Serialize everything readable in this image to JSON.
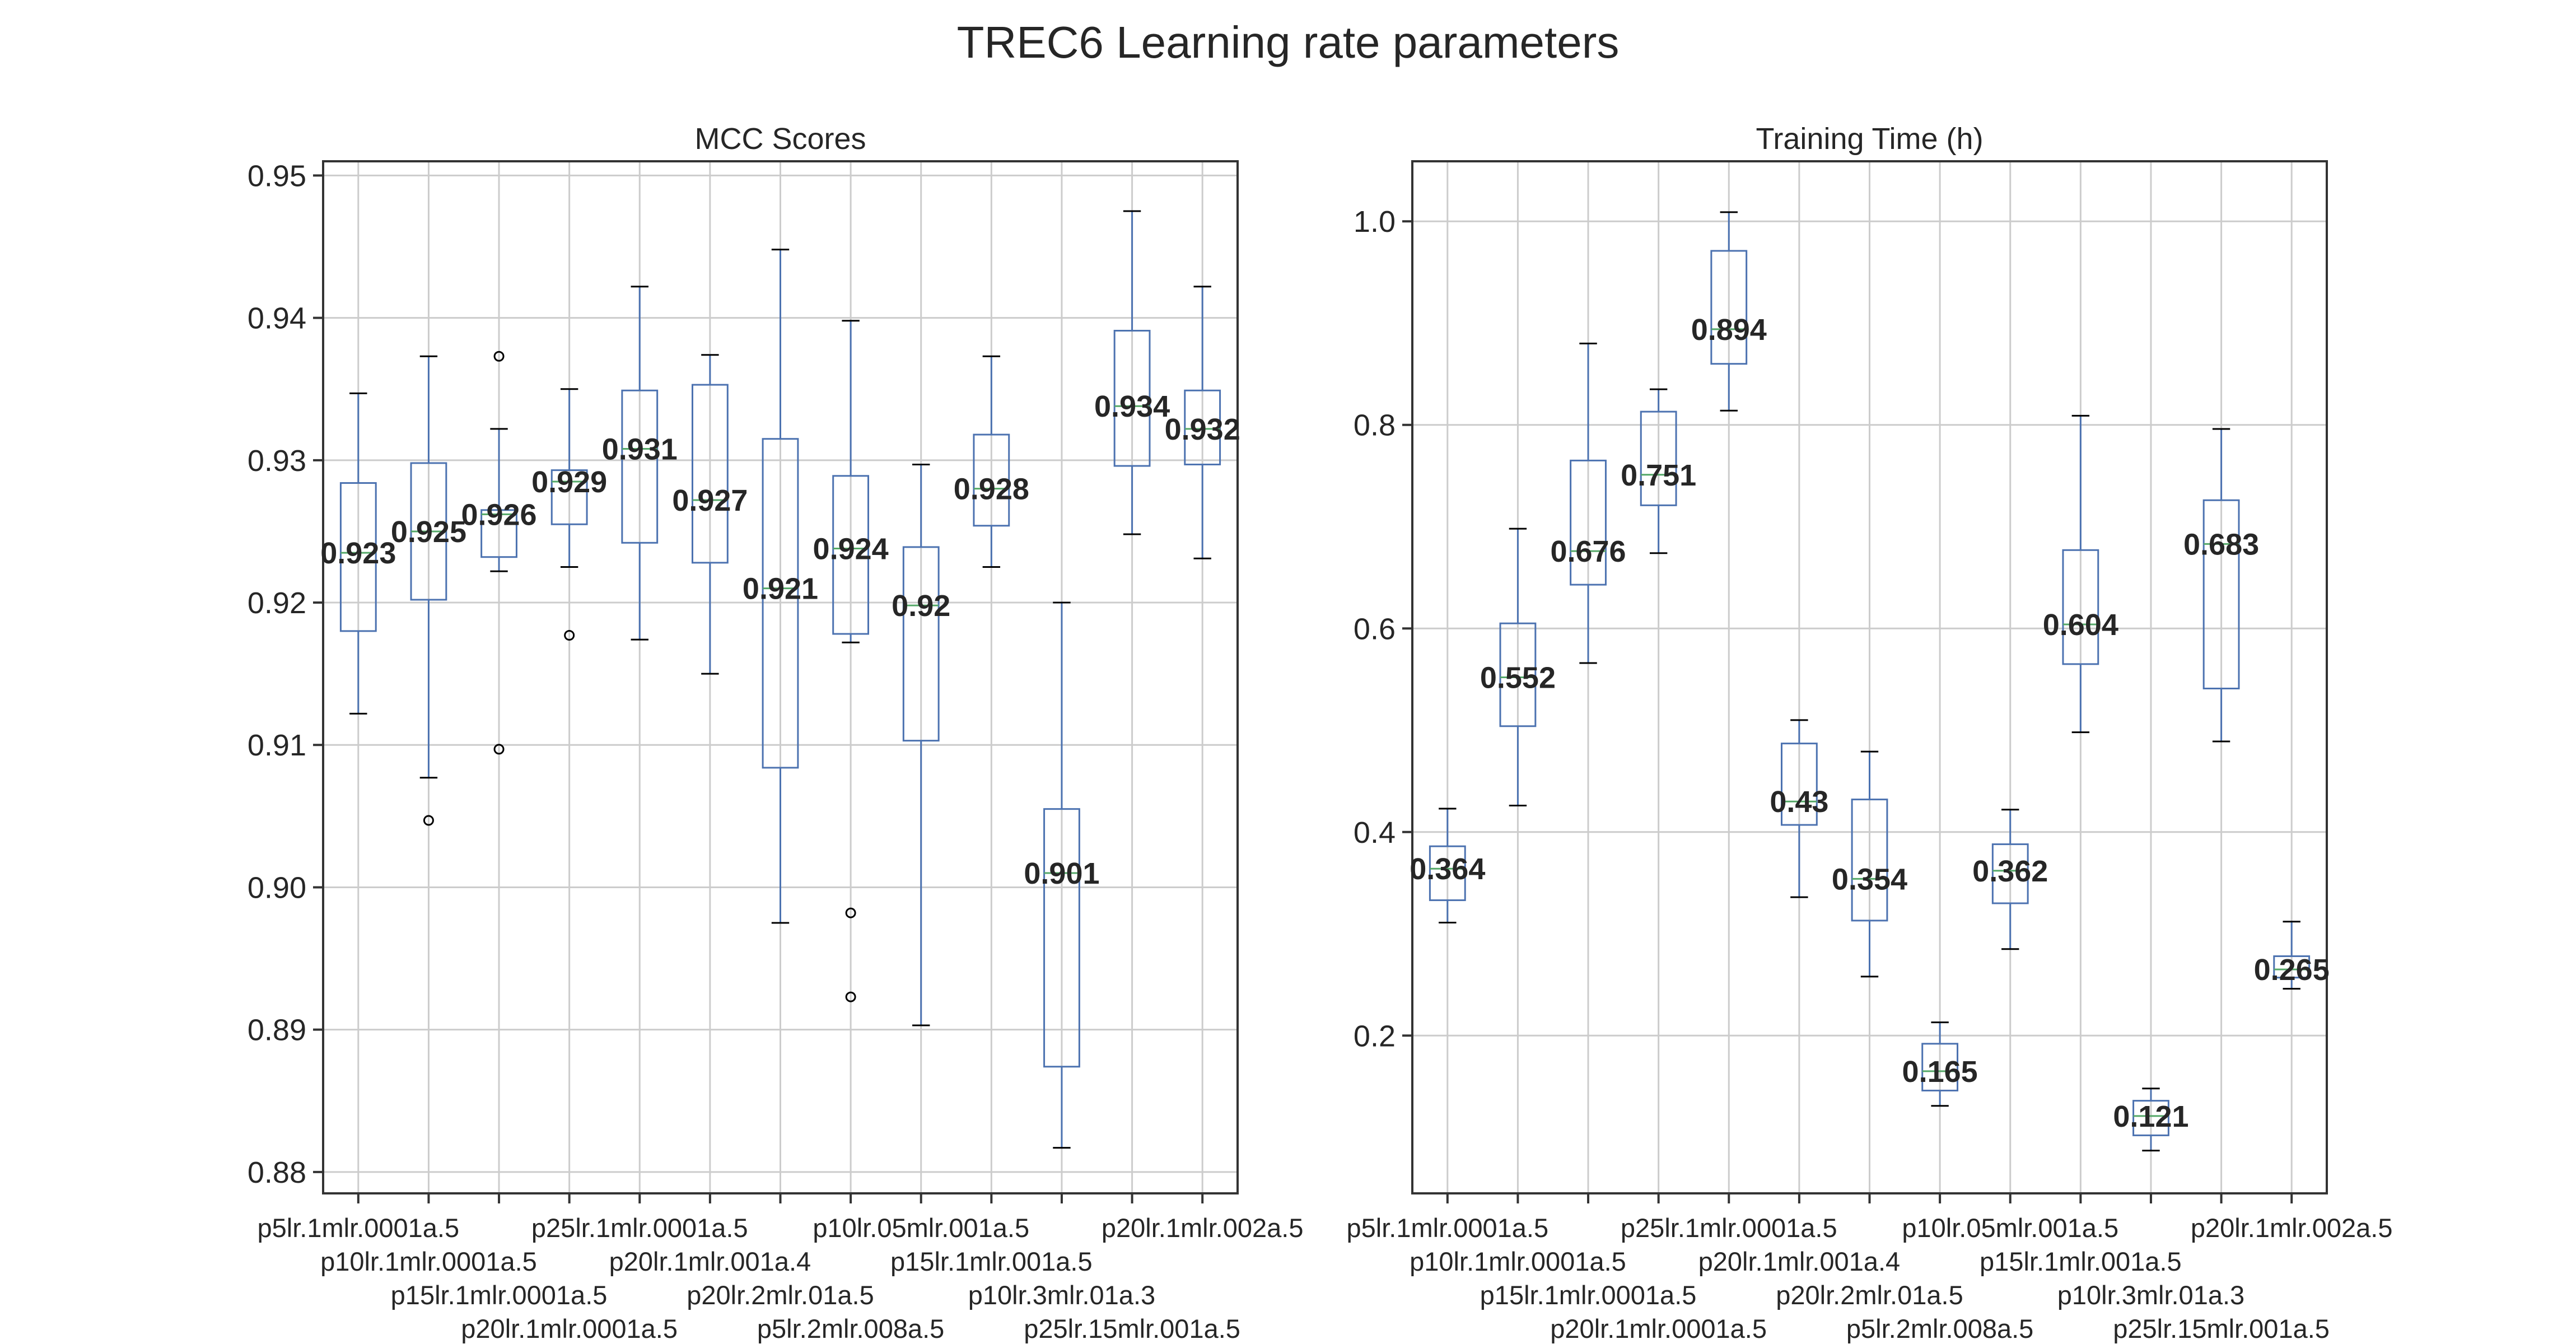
{
  "figure": {
    "title": "TREC6 Learning rate parameters"
  },
  "colors": {
    "box": "#4c72b0",
    "median": "#55a868",
    "grid": "#cccccc",
    "axis": "#333333",
    "label": "#262626",
    "flier": "#000000"
  },
  "chart_data": [
    {
      "type": "box",
      "title": "MCC Scores",
      "xlabel": "",
      "ylabel": "",
      "ylim": [
        0.8785,
        0.951
      ],
      "yticks": [
        0.88,
        0.89,
        0.9,
        0.91,
        0.92,
        0.93,
        0.94,
        0.95
      ],
      "ytick_labels": [
        "0.88",
        "0.89",
        "0.90",
        "0.91",
        "0.92",
        "0.93",
        "0.94",
        "0.95"
      ],
      "grid": true,
      "categories": [
        "p5lr.1mlr.0001a.5",
        "p10lr.1mlr.0001a.5",
        "p15lr.1mlr.0001a.5",
        "p20lr.1mlr.0001a.5",
        "p25lr.1mlr.0001a.5",
        "p20lr.1mlr.001a.4",
        "p20lr.2mlr.01a.5",
        "p5lr.2mlr.008a.5",
        "p10lr.05mlr.001a.5",
        "p15lr.1mlr.001a.5",
        "p10lr.3mlr.01a.3",
        "p25lr.15mlr.001a.5",
        "p20lr.1mlr.002a.5"
      ],
      "boxes": [
        {
          "q1": 0.918,
          "median": 0.9235,
          "q3": 0.9284,
          "whislo": 0.9122,
          "whishi": 0.9347,
          "fliers": [],
          "label": "0.923"
        },
        {
          "q1": 0.9202,
          "median": 0.925,
          "q3": 0.9298,
          "whislo": 0.9077,
          "whishi": 0.9373,
          "fliers": [
            0.9047
          ],
          "label": "0.925"
        },
        {
          "q1": 0.9232,
          "median": 0.9262,
          "q3": 0.9265,
          "whislo": 0.9222,
          "whishi": 0.9322,
          "fliers": [
            0.9373,
            0.9097
          ],
          "label": "0.926"
        },
        {
          "q1": 0.9255,
          "median": 0.9285,
          "q3": 0.9293,
          "whislo": 0.9225,
          "whishi": 0.935,
          "fliers": [
            0.9177
          ],
          "label": "0.929"
        },
        {
          "q1": 0.9242,
          "median": 0.9308,
          "q3": 0.9349,
          "whislo": 0.9174,
          "whishi": 0.9422,
          "fliers": [],
          "label": "0.931"
        },
        {
          "q1": 0.9228,
          "median": 0.9272,
          "q3": 0.9353,
          "whislo": 0.915,
          "whishi": 0.9374,
          "fliers": [],
          "label": "0.927"
        },
        {
          "q1": 0.9084,
          "median": 0.921,
          "q3": 0.9315,
          "whislo": 0.8975,
          "whishi": 0.9448,
          "fliers": [],
          "label": "0.921"
        },
        {
          "q1": 0.9178,
          "median": 0.9238,
          "q3": 0.9289,
          "whislo": 0.9172,
          "whishi": 0.9398,
          "fliers": [
            0.8982,
            0.8923
          ],
          "label": "0.924"
        },
        {
          "q1": 0.9103,
          "median": 0.9198,
          "q3": 0.9239,
          "whislo": 0.8903,
          "whishi": 0.9297,
          "fliers": [],
          "label": "0.92"
        },
        {
          "q1": 0.9254,
          "median": 0.928,
          "q3": 0.9318,
          "whislo": 0.9225,
          "whishi": 0.9373,
          "fliers": [],
          "label": "0.928"
        },
        {
          "q1": 0.8874,
          "median": 0.901,
          "q3": 0.9055,
          "whislo": 0.8817,
          "whishi": 0.92,
          "fliers": [],
          "label": "0.901"
        },
        {
          "q1": 0.9296,
          "median": 0.9338,
          "q3": 0.9391,
          "whislo": 0.9248,
          "whishi": 0.9475,
          "fliers": [],
          "label": "0.934"
        },
        {
          "q1": 0.9297,
          "median": 0.9322,
          "q3": 0.9349,
          "whislo": 0.9231,
          "whishi": 0.9422,
          "fliers": [],
          "label": "0.932"
        }
      ]
    },
    {
      "type": "box",
      "title": "Training Time (h)",
      "xlabel": "",
      "ylabel": "",
      "ylim": [
        0.045,
        1.059
      ],
      "yticks": [
        0.2,
        0.4,
        0.6,
        0.8,
        1.0
      ],
      "ytick_labels": [
        "0.2",
        "0.4",
        "0.6",
        "0.8",
        "1.0"
      ],
      "grid": true,
      "categories": [
        "p5lr.1mlr.0001a.5",
        "p10lr.1mlr.0001a.5",
        "p15lr.1mlr.0001a.5",
        "p20lr.1mlr.0001a.5",
        "p25lr.1mlr.0001a.5",
        "p20lr.1mlr.001a.4",
        "p20lr.2mlr.01a.5",
        "p5lr.2mlr.008a.5",
        "p10lr.05mlr.001a.5",
        "p15lr.1mlr.001a.5",
        "p10lr.3mlr.01a.3",
        "p25lr.15mlr.001a.5",
        "p20lr.1mlr.002a.5"
      ],
      "boxes": [
        {
          "q1": 0.333,
          "median": 0.364,
          "q3": 0.386,
          "whislo": 0.311,
          "whishi": 0.423,
          "fliers": [],
          "label": "0.364"
        },
        {
          "q1": 0.504,
          "median": 0.552,
          "q3": 0.605,
          "whislo": 0.426,
          "whishi": 0.698,
          "fliers": [],
          "label": "0.552"
        },
        {
          "q1": 0.643,
          "median": 0.676,
          "q3": 0.765,
          "whislo": 0.566,
          "whishi": 0.88,
          "fliers": [],
          "label": "0.676"
        },
        {
          "q1": 0.721,
          "median": 0.751,
          "q3": 0.813,
          "whislo": 0.674,
          "whishi": 0.835,
          "fliers": [],
          "label": "0.751"
        },
        {
          "q1": 0.86,
          "median": 0.894,
          "q3": 0.971,
          "whislo": 0.814,
          "whishi": 1.009,
          "fliers": [],
          "label": "0.894"
        },
        {
          "q1": 0.407,
          "median": 0.43,
          "q3": 0.487,
          "whislo": 0.336,
          "whishi": 0.51,
          "fliers": [],
          "label": "0.43"
        },
        {
          "q1": 0.313,
          "median": 0.354,
          "q3": 0.432,
          "whislo": 0.258,
          "whishi": 0.479,
          "fliers": [],
          "label": "0.354"
        },
        {
          "q1": 0.146,
          "median": 0.165,
          "q3": 0.192,
          "whislo": 0.131,
          "whishi": 0.213,
          "fliers": [],
          "label": "0.165"
        },
        {
          "q1": 0.33,
          "median": 0.362,
          "q3": 0.388,
          "whislo": 0.285,
          "whishi": 0.422,
          "fliers": [],
          "label": "0.362"
        },
        {
          "q1": 0.565,
          "median": 0.604,
          "q3": 0.677,
          "whislo": 0.498,
          "whishi": 0.809,
          "fliers": [],
          "label": "0.604"
        },
        {
          "q1": 0.102,
          "median": 0.121,
          "q3": 0.136,
          "whislo": 0.087,
          "whishi": 0.148,
          "fliers": [],
          "label": "0.121"
        },
        {
          "q1": 0.541,
          "median": 0.683,
          "q3": 0.726,
          "whislo": 0.489,
          "whishi": 0.796,
          "fliers": [],
          "label": "0.683"
        },
        {
          "q1": 0.257,
          "median": 0.265,
          "q3": 0.278,
          "whislo": 0.246,
          "whishi": 0.312,
          "fliers": [],
          "label": "0.265"
        }
      ]
    }
  ]
}
